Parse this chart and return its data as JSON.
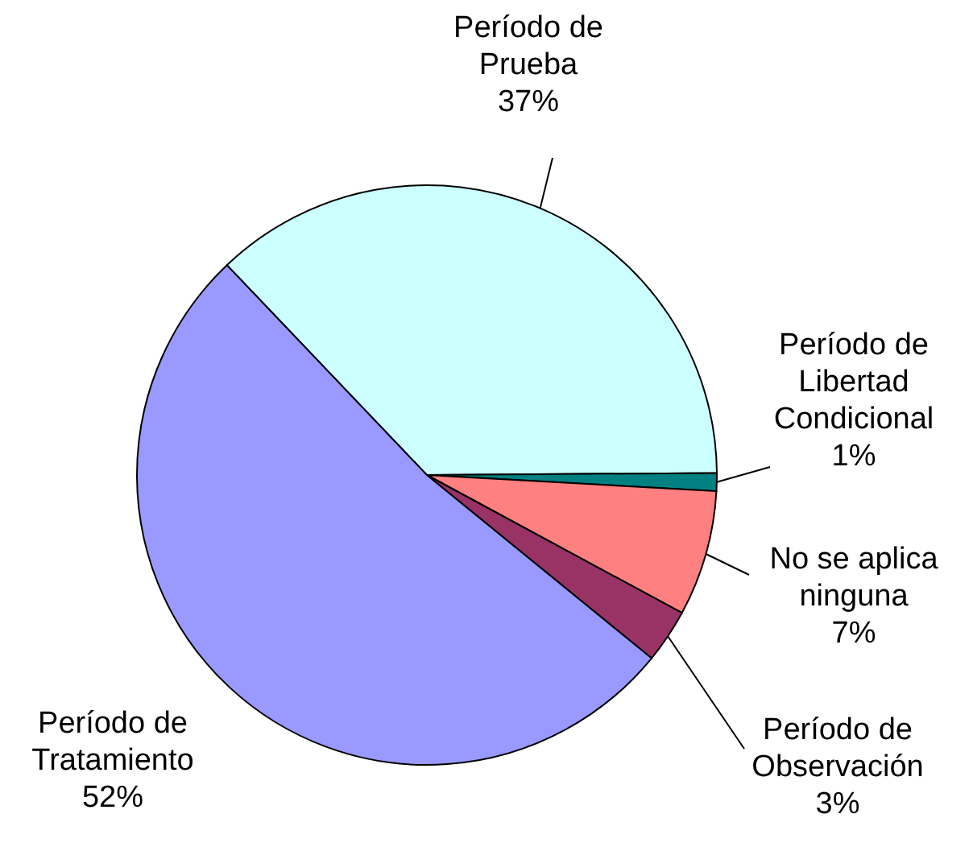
{
  "chart_data": {
    "type": "pie",
    "categories": [
      "Período de Prueba",
      "Período de Libertad Condicional",
      "No se aplica ninguna",
      "Período de Observación",
      "Período de Tratamiento"
    ],
    "values": [
      37,
      1,
      7,
      3,
      52
    ],
    "colors": [
      "#ccffff",
      "#008080",
      "#ff8080",
      "#993366",
      "#9999ff"
    ],
    "value_labels": [
      "37%",
      "1%",
      "7%",
      "3%",
      "52%"
    ]
  }
}
